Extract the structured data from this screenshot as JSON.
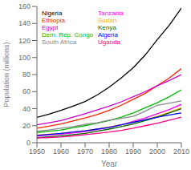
{
  "chart_data": {
    "type": "line",
    "title": "",
    "xlabel": "Year",
    "ylabel": "Population (millions)",
    "x": [
      1950,
      1955,
      1960,
      1965,
      1970,
      1975,
      1980,
      1985,
      1990,
      1995,
      2000,
      2005,
      2010
    ],
    "xlim": [
      1950,
      2010
    ],
    "ylim": [
      0,
      160
    ],
    "xticks": [
      1950,
      1960,
      1970,
      1980,
      1990,
      2000,
      2010
    ],
    "yticks": [
      0,
      20,
      40,
      60,
      80,
      100,
      120,
      140,
      160
    ],
    "grid": false,
    "legend": "upper left",
    "series": [
      {
        "name": "Nigeria",
        "color": "#000000",
        "values": [
          29.8,
          33.5,
          37.9,
          43.0,
          48.4,
          56.0,
          65.2,
          76.0,
          88.0,
          103.0,
          121.0,
          138.0,
          158.0
        ]
      },
      {
        "name": "Ethiopia",
        "color": "#FF2200",
        "values": [
          17.0,
          19.5,
          22.0,
          25.5,
          29.0,
          33.0,
          38.0,
          44.0,
          51.0,
          58.0,
          67.0,
          76.0,
          87.0
        ]
      },
      {
        "name": "Egypt",
        "color": "#CC00CC",
        "values": [
          21.0,
          23.5,
          26.0,
          30.0,
          34.0,
          38.5,
          43.0,
          48.0,
          54.0,
          60.0,
          67.0,
          73.0,
          80.0
        ]
      },
      {
        "name": "Dem. Rep. Congo",
        "color": "#00BB00",
        "values": [
          12.0,
          13.5,
          15.0,
          17.5,
          20.0,
          23.0,
          26.0,
          30.0,
          35.0,
          41.0,
          47.0,
          54.0,
          62.0
        ]
      },
      {
        "name": "South Africa",
        "color": "#888888",
        "values": [
          13.5,
          15.0,
          17.0,
          19.0,
          21.4,
          23.5,
          26.5,
          28.5,
          31.0,
          37.0,
          44.0,
          46.5,
          49.0
        ]
      },
      {
        "name": "Tanzania",
        "color": "#FF00FF",
        "values": [
          8.0,
          9.0,
          10.0,
          11.5,
          13.0,
          15.5,
          18.0,
          21.0,
          25.0,
          29.0,
          34.0,
          39.0,
          45.0
        ]
      },
      {
        "name": "Sudan",
        "color": "#FFAA00",
        "values": [
          9.0,
          10.0,
          11.0,
          12.5,
          14.0,
          16.0,
          18.5,
          21.0,
          24.0,
          27.0,
          31.0,
          36.0,
          41.0
        ]
      },
      {
        "name": "Kenya",
        "color": "#006600",
        "values": [
          6.0,
          7.0,
          8.1,
          9.5,
          11.0,
          13.5,
          16.0,
          19.0,
          22.0,
          26.0,
          30.0,
          35.0,
          40.0
        ]
      },
      {
        "name": "Algeria",
        "color": "#0000FF",
        "values": [
          8.5,
          9.8,
          11.0,
          12.5,
          14.0,
          16.0,
          18.0,
          21.0,
          24.0,
          27.0,
          30.0,
          32.5,
          35.0
        ]
      },
      {
        "name": "Uganda",
        "color": "#FF0088",
        "values": [
          5.5,
          6.1,
          6.8,
          8.0,
          9.5,
          11.0,
          12.5,
          14.5,
          17.0,
          20.0,
          23.0,
          26.5,
          30.0
        ]
      }
    ]
  }
}
